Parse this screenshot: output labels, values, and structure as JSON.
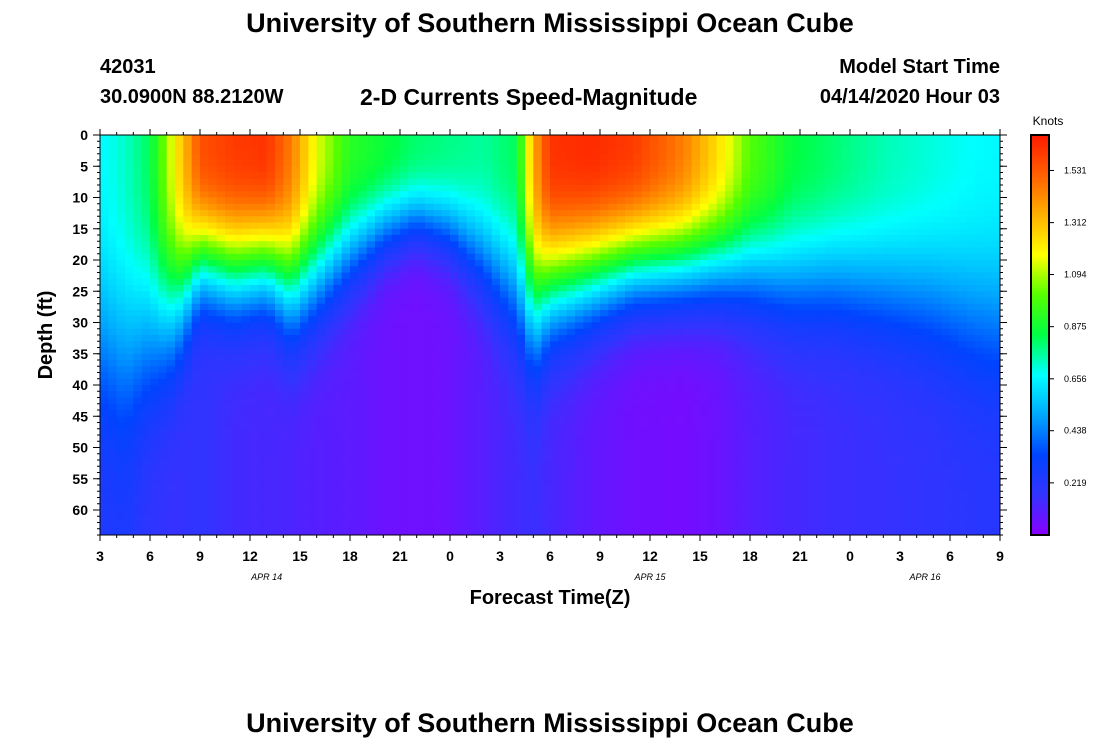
{
  "header": {
    "title": "University of Southern Mississippi Ocean Cube",
    "station_id": "42031",
    "coords": "30.0900N 88.2120W",
    "subtitle": "2-D Currents Speed-Magnitude",
    "model_start_label": "Model Start Time",
    "model_start_value": "04/14/2020 Hour 03"
  },
  "footer": {
    "title": "University of Southern Mississippi Ocean Cube"
  },
  "chart_data": {
    "type": "heatmap",
    "title": "2-D Currents Speed-Magnitude",
    "xlabel": "Forecast Time(Z)",
    "ylabel": "Depth (ft)",
    "x_range_hours": [
      0,
      54
    ],
    "x_tick_labels": [
      "3",
      "6",
      "9",
      "12",
      "15",
      "18",
      "21",
      "0",
      "3",
      "6",
      "9",
      "12",
      "15",
      "18",
      "21",
      "0",
      "3",
      "6",
      "9"
    ],
    "date_labels": [
      {
        "label": "APR  14",
        "hour": 10
      },
      {
        "label": "APR  15",
        "hour": 33
      },
      {
        "label": "APR  16",
        "hour": 49.5
      }
    ],
    "ylim": [
      0,
      64
    ],
    "y_ticks": [
      0,
      5,
      10,
      15,
      20,
      25,
      30,
      35,
      40,
      45,
      50,
      55,
      60
    ],
    "colorbar": {
      "label": "Knots",
      "min": 0.0,
      "max": 1.68,
      "ticks": [
        0.219,
        0.438,
        0.656,
        0.875,
        1.094,
        1.312,
        1.531
      ],
      "colors": [
        "#8a00ff",
        "#3333ff",
        "#0044ff",
        "#00a8ff",
        "#00ffff",
        "#00ff44",
        "#55ff00",
        "#ffff00",
        "#ffb000",
        "#ff6000",
        "#ff1a00"
      ]
    },
    "field_profile": [
      {
        "hour": 0.0,
        "surface": 0.66,
        "bottom": 0.23,
        "width": 38
      },
      {
        "hour": 1.5,
        "surface": 0.72,
        "bottom": 0.24,
        "width": 40
      },
      {
        "hour": 3.0,
        "surface": 0.82,
        "bottom": 0.18,
        "width": 36
      },
      {
        "hour": 4.5,
        "surface": 1.2,
        "bottom": 0.16,
        "width": 31
      },
      {
        "hour": 6.0,
        "surface": 1.55,
        "bottom": 0.18,
        "width": 22
      },
      {
        "hour": 8.0,
        "surface": 1.6,
        "bottom": 0.14,
        "width": 24
      },
      {
        "hour": 10.0,
        "surface": 1.62,
        "bottom": 0.13,
        "width": 23
      },
      {
        "hour": 11.5,
        "surface": 1.45,
        "bottom": 0.12,
        "width": 27
      },
      {
        "hour": 13.0,
        "surface": 1.15,
        "bottom": 0.1,
        "width": 25
      },
      {
        "hour": 15.0,
        "surface": 0.92,
        "bottom": 0.09,
        "width": 21
      },
      {
        "hour": 17.0,
        "surface": 0.86,
        "bottom": 0.06,
        "width": 17
      },
      {
        "hour": 19.0,
        "surface": 0.8,
        "bottom": 0.05,
        "width": 15
      },
      {
        "hour": 21.0,
        "surface": 0.78,
        "bottom": 0.06,
        "width": 17
      },
      {
        "hour": 23.0,
        "surface": 0.76,
        "bottom": 0.1,
        "width": 22
      },
      {
        "hour": 25.0,
        "surface": 0.82,
        "bottom": 0.14,
        "width": 28
      },
      {
        "hour": 26.0,
        "surface": 1.35,
        "bottom": 0.16,
        "width": 31
      },
      {
        "hour": 27.0,
        "surface": 1.62,
        "bottom": 0.13,
        "width": 27
      },
      {
        "hour": 29.5,
        "surface": 1.64,
        "bottom": 0.08,
        "width": 25
      },
      {
        "hour": 32.0,
        "surface": 1.6,
        "bottom": 0.05,
        "width": 23
      },
      {
        "hour": 35.0,
        "surface": 1.45,
        "bottom": 0.04,
        "width": 23
      },
      {
        "hour": 37.0,
        "surface": 1.25,
        "bottom": 0.06,
        "width": 23
      },
      {
        "hour": 39.0,
        "surface": 1.0,
        "bottom": 0.1,
        "width": 24
      },
      {
        "hour": 41.5,
        "surface": 0.85,
        "bottom": 0.13,
        "width": 26
      },
      {
        "hour": 44.0,
        "surface": 0.8,
        "bottom": 0.15,
        "width": 26
      },
      {
        "hour": 47.0,
        "surface": 0.74,
        "bottom": 0.16,
        "width": 28
      },
      {
        "hour": 50.0,
        "surface": 0.7,
        "bottom": 0.18,
        "width": 30
      },
      {
        "hour": 52.5,
        "surface": 0.67,
        "bottom": 0.2,
        "width": 33
      },
      {
        "hour": 54.0,
        "surface": 0.66,
        "bottom": 0.21,
        "width": 34
      }
    ]
  }
}
